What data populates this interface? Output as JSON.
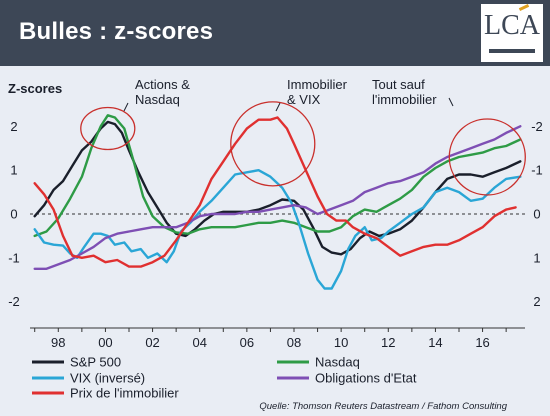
{
  "header": {
    "title": "Bulles : z-scores"
  },
  "logo": {
    "text": "LCA"
  },
  "chart_data": {
    "type": "line",
    "ylabel": "Z-scores",
    "ylim": [
      -2.6,
      2.6
    ],
    "xlim": [
      1996.8,
      2017.8
    ],
    "left_ticks": [
      "2",
      "1",
      "0",
      "-1",
      "-2"
    ],
    "right_ticks": [
      "-2",
      "-1",
      "0",
      "1",
      "2"
    ],
    "x_ticks": [
      "98",
      "00",
      "02",
      "04",
      "06",
      "08",
      "10",
      "12",
      "14",
      "16"
    ],
    "grid": false,
    "annotations": [
      {
        "text": [
          "Actions &",
          "Nasdaq"
        ]
      },
      {
        "text": [
          "Immobilier",
          "& VIX"
        ]
      },
      {
        "text": [
          "Tout sauf",
          "l'immobilier"
        ]
      }
    ],
    "source": "Quelle: Thomson Reuters Datastream / Fathom Consulting",
    "legend_position": "bottom",
    "series": [
      {
        "name": "S&P 500",
        "color": "#1a1f2b",
        "points": [
          [
            1997.0,
            -0.05
          ],
          [
            1997.4,
            0.2
          ],
          [
            1997.8,
            0.55
          ],
          [
            1998.2,
            0.75
          ],
          [
            1998.6,
            1.1
          ],
          [
            1999.0,
            1.45
          ],
          [
            1999.4,
            1.65
          ],
          [
            1999.8,
            1.95
          ],
          [
            2000.1,
            2.1
          ],
          [
            2000.4,
            2.05
          ],
          [
            2000.7,
            1.85
          ],
          [
            2001.0,
            1.45
          ],
          [
            2001.4,
            0.95
          ],
          [
            2001.8,
            0.5
          ],
          [
            2002.2,
            0.15
          ],
          [
            2002.6,
            -0.2
          ],
          [
            2003.0,
            -0.45
          ],
          [
            2003.4,
            -0.5
          ],
          [
            2003.8,
            -0.35
          ],
          [
            2004.2,
            -0.15
          ],
          [
            2004.6,
            0.0
          ],
          [
            2005.0,
            0.05
          ],
          [
            2005.5,
            0.05
          ],
          [
            2006.0,
            0.05
          ],
          [
            2006.5,
            0.1
          ],
          [
            2007.0,
            0.2
          ],
          [
            2007.5,
            0.33
          ],
          [
            2008.0,
            0.3
          ],
          [
            2008.4,
            0.1
          ],
          [
            2008.8,
            -0.3
          ],
          [
            2009.2,
            -0.75
          ],
          [
            2009.6,
            -0.88
          ],
          [
            2010.0,
            -0.92
          ],
          [
            2010.4,
            -0.8
          ],
          [
            2010.8,
            -0.55
          ],
          [
            2011.2,
            -0.4
          ],
          [
            2011.6,
            -0.5
          ],
          [
            2012.0,
            -0.45
          ],
          [
            2012.5,
            -0.35
          ],
          [
            2013.0,
            -0.15
          ],
          [
            2013.5,
            0.15
          ],
          [
            2014.0,
            0.5
          ],
          [
            2014.5,
            0.8
          ],
          [
            2015.0,
            0.9
          ],
          [
            2015.5,
            0.9
          ],
          [
            2016.0,
            0.85
          ],
          [
            2016.5,
            0.95
          ],
          [
            2017.0,
            1.05
          ],
          [
            2017.6,
            1.2
          ]
        ]
      },
      {
        "name": "Nasdaq",
        "color": "#2e9b46",
        "points": [
          [
            1997.0,
            -0.5
          ],
          [
            1997.5,
            -0.4
          ],
          [
            1998.0,
            -0.1
          ],
          [
            1998.5,
            0.35
          ],
          [
            1999.0,
            0.85
          ],
          [
            1999.4,
            1.5
          ],
          [
            1999.8,
            2.0
          ],
          [
            2000.1,
            2.25
          ],
          [
            2000.4,
            2.2
          ],
          [
            2000.8,
            1.95
          ],
          [
            2001.2,
            1.2
          ],
          [
            2001.6,
            0.4
          ],
          [
            2002.0,
            -0.05
          ],
          [
            2002.5,
            -0.3
          ],
          [
            2003.0,
            -0.42
          ],
          [
            2003.5,
            -0.45
          ],
          [
            2004.0,
            -0.35
          ],
          [
            2004.5,
            -0.3
          ],
          [
            2005.0,
            -0.3
          ],
          [
            2005.5,
            -0.3
          ],
          [
            2006.0,
            -0.25
          ],
          [
            2006.5,
            -0.2
          ],
          [
            2007.0,
            -0.2
          ],
          [
            2007.5,
            -0.15
          ],
          [
            2008.0,
            -0.2
          ],
          [
            2008.5,
            -0.3
          ],
          [
            2009.0,
            -0.4
          ],
          [
            2009.5,
            -0.4
          ],
          [
            2010.0,
            -0.3
          ],
          [
            2010.5,
            -0.05
          ],
          [
            2011.0,
            0.1
          ],
          [
            2011.5,
            0.05
          ],
          [
            2012.0,
            0.2
          ],
          [
            2012.5,
            0.35
          ],
          [
            2013.0,
            0.55
          ],
          [
            2013.5,
            0.85
          ],
          [
            2014.0,
            1.05
          ],
          [
            2014.5,
            1.2
          ],
          [
            2015.0,
            1.3
          ],
          [
            2015.5,
            1.35
          ],
          [
            2016.0,
            1.4
          ],
          [
            2016.5,
            1.5
          ],
          [
            2017.0,
            1.55
          ],
          [
            2017.6,
            1.7
          ]
        ]
      },
      {
        "name": "VIX (inversé)",
        "color": "#2aa6d6",
        "points": [
          [
            1997.0,
            -0.35
          ],
          [
            1997.4,
            -0.65
          ],
          [
            1997.8,
            -0.7
          ],
          [
            1998.2,
            -0.72
          ],
          [
            1998.5,
            -0.9
          ],
          [
            1998.8,
            -1.0
          ],
          [
            1999.1,
            -0.75
          ],
          [
            1999.5,
            -0.45
          ],
          [
            1999.8,
            -0.45
          ],
          [
            2000.1,
            -0.5
          ],
          [
            2000.4,
            -0.7
          ],
          [
            2000.8,
            -0.65
          ],
          [
            2001.1,
            -0.85
          ],
          [
            2001.5,
            -0.8
          ],
          [
            2001.8,
            -1.0
          ],
          [
            2002.2,
            -0.9
          ],
          [
            2002.6,
            -1.1
          ],
          [
            2002.9,
            -0.85
          ],
          [
            2003.2,
            -0.4
          ],
          [
            2003.6,
            -0.2
          ],
          [
            2004.0,
            0.05
          ],
          [
            2004.5,
            0.3
          ],
          [
            2005.0,
            0.6
          ],
          [
            2005.5,
            0.9
          ],
          [
            2006.0,
            0.95
          ],
          [
            2006.5,
            1.0
          ],
          [
            2007.0,
            0.85
          ],
          [
            2007.5,
            0.6
          ],
          [
            2007.9,
            0.25
          ],
          [
            2008.2,
            -0.2
          ],
          [
            2008.6,
            -0.9
          ],
          [
            2009.0,
            -1.5
          ],
          [
            2009.3,
            -1.7
          ],
          [
            2009.6,
            -1.7
          ],
          [
            2010.0,
            -1.3
          ],
          [
            2010.3,
            -0.8
          ],
          [
            2010.6,
            -0.5
          ],
          [
            2011.0,
            -0.3
          ],
          [
            2011.3,
            -0.6
          ],
          [
            2011.7,
            -0.55
          ],
          [
            2012.0,
            -0.4
          ],
          [
            2012.5,
            -0.2
          ],
          [
            2013.0,
            0.0
          ],
          [
            2013.5,
            0.15
          ],
          [
            2014.0,
            0.5
          ],
          [
            2014.5,
            0.6
          ],
          [
            2015.0,
            0.5
          ],
          [
            2015.5,
            0.3
          ],
          [
            2016.0,
            0.35
          ],
          [
            2016.5,
            0.6
          ],
          [
            2017.0,
            0.8
          ],
          [
            2017.6,
            0.85
          ]
        ]
      },
      {
        "name": "Obligations d'Etat",
        "color": "#7e4fb4",
        "points": [
          [
            1997.0,
            -1.25
          ],
          [
            1997.5,
            -1.25
          ],
          [
            1998.0,
            -1.15
          ],
          [
            1998.5,
            -1.05
          ],
          [
            1999.0,
            -0.9
          ],
          [
            1999.5,
            -0.75
          ],
          [
            2000.0,
            -0.55
          ],
          [
            2000.5,
            -0.45
          ],
          [
            2001.0,
            -0.4
          ],
          [
            2001.5,
            -0.35
          ],
          [
            2002.0,
            -0.3
          ],
          [
            2002.5,
            -0.3
          ],
          [
            2003.0,
            -0.3
          ],
          [
            2003.5,
            -0.2
          ],
          [
            2004.0,
            -0.05
          ],
          [
            2004.5,
            0.0
          ],
          [
            2005.0,
            0.0
          ],
          [
            2005.5,
            0.0
          ],
          [
            2006.0,
            0.05
          ],
          [
            2006.5,
            0.05
          ],
          [
            2007.0,
            0.1
          ],
          [
            2007.5,
            0.15
          ],
          [
            2008.0,
            0.2
          ],
          [
            2008.5,
            0.15
          ],
          [
            2009.0,
            0.0
          ],
          [
            2009.5,
            0.1
          ],
          [
            2010.0,
            0.2
          ],
          [
            2010.5,
            0.3
          ],
          [
            2011.0,
            0.5
          ],
          [
            2011.5,
            0.6
          ],
          [
            2012.0,
            0.7
          ],
          [
            2012.5,
            0.75
          ],
          [
            2013.0,
            0.85
          ],
          [
            2013.5,
            0.95
          ],
          [
            2014.0,
            1.15
          ],
          [
            2014.5,
            1.3
          ],
          [
            2015.0,
            1.4
          ],
          [
            2015.5,
            1.5
          ],
          [
            2016.0,
            1.6
          ],
          [
            2016.5,
            1.7
          ],
          [
            2017.0,
            1.85
          ],
          [
            2017.6,
            2.0
          ]
        ]
      },
      {
        "name": "Prix de l'immobilier",
        "color": "#e03030",
        "points": [
          [
            1997.0,
            0.7
          ],
          [
            1997.4,
            0.45
          ],
          [
            1997.8,
            0.1
          ],
          [
            1998.2,
            -0.5
          ],
          [
            1998.6,
            -0.95
          ],
          [
            1999.0,
            -1.0
          ],
          [
            1999.5,
            -0.95
          ],
          [
            2000.0,
            -1.1
          ],
          [
            2000.5,
            -1.05
          ],
          [
            2001.0,
            -1.2
          ],
          [
            2001.5,
            -1.2
          ],
          [
            2002.0,
            -1.1
          ],
          [
            2002.5,
            -0.95
          ],
          [
            2003.0,
            -0.6
          ],
          [
            2003.5,
            -0.2
          ],
          [
            2004.0,
            0.2
          ],
          [
            2004.5,
            0.8
          ],
          [
            2005.0,
            1.2
          ],
          [
            2005.5,
            1.6
          ],
          [
            2006.0,
            1.95
          ],
          [
            2006.5,
            2.15
          ],
          [
            2007.0,
            2.15
          ],
          [
            2007.3,
            2.2
          ],
          [
            2007.7,
            1.95
          ],
          [
            2008.0,
            1.6
          ],
          [
            2008.5,
            1.0
          ],
          [
            2009.0,
            0.4
          ],
          [
            2009.4,
            0.0
          ],
          [
            2009.8,
            -0.15
          ],
          [
            2010.2,
            -0.15
          ],
          [
            2010.5,
            -0.3
          ],
          [
            2011.0,
            -0.45
          ],
          [
            2011.5,
            -0.55
          ],
          [
            2012.0,
            -0.75
          ],
          [
            2012.5,
            -0.95
          ],
          [
            2013.0,
            -0.85
          ],
          [
            2013.5,
            -0.75
          ],
          [
            2014.0,
            -0.7
          ],
          [
            2014.5,
            -0.7
          ],
          [
            2015.0,
            -0.6
          ],
          [
            2015.5,
            -0.45
          ],
          [
            2016.0,
            -0.3
          ],
          [
            2016.5,
            -0.05
          ],
          [
            2017.0,
            0.1
          ],
          [
            2017.4,
            0.15
          ]
        ]
      }
    ]
  }
}
